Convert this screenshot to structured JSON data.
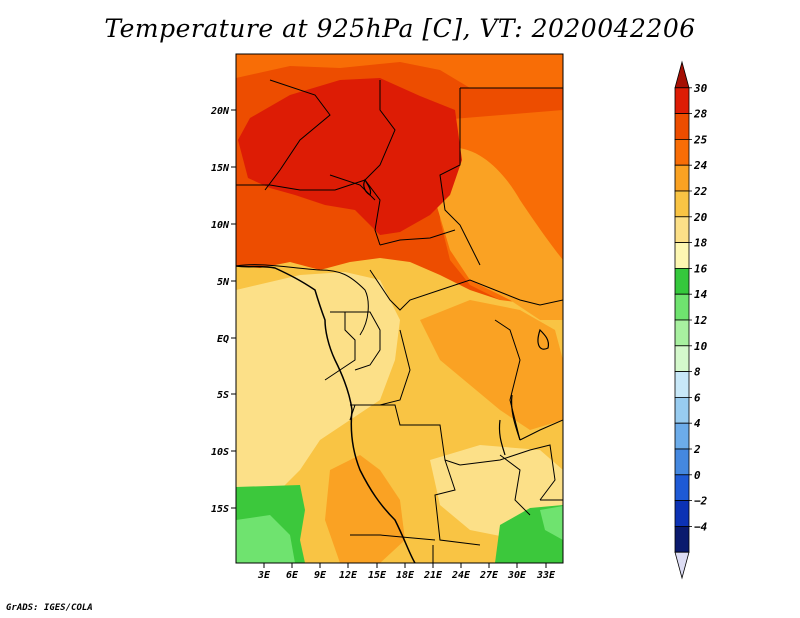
{
  "title": "Temperature at 925hPa [C], VT: 2020042206",
  "credit": "GrADS: IGES/COLA",
  "map": {
    "variable": "Temperature at 925hPa",
    "units": "C",
    "valid_time": "2020042206",
    "lat_labels": [
      "20N",
      "15N",
      "10N",
      "5N",
      "EQ",
      "5S",
      "10S",
      "15S"
    ],
    "lon_labels": [
      "3E",
      "6E",
      "9E",
      "12E",
      "15E",
      "18E",
      "21E",
      "24E",
      "27E",
      "30E",
      "33E"
    ],
    "regions": [
      {
        "name": "sahel-hot-core",
        "color": "#dd1c05"
      },
      {
        "name": "northern-warm-band",
        "color": "#ed4d00"
      },
      {
        "name": "east-sudan-warm",
        "color": "#f86d06"
      },
      {
        "name": "central-basin",
        "color": "#f9c444"
      },
      {
        "name": "atlantic-cool",
        "color": "#fce088"
      },
      {
        "name": "southern-green",
        "color": "#3cc83c"
      }
    ]
  },
  "colorbar": {
    "levels": [
      "30",
      "28",
      "25",
      "24",
      "22",
      "20",
      "18",
      "16",
      "14",
      "12",
      "10",
      "8",
      "6",
      "4",
      "2",
      "0",
      "−2",
      "−4"
    ],
    "colors": [
      "#a50f04",
      "#dd1c05",
      "#ed4d00",
      "#f86d06",
      "#faa223",
      "#f9c444",
      "#fce088",
      "#fdf7b2",
      "#35c83c",
      "#6fe36f",
      "#a8f0a0",
      "#d4f8cc",
      "#c8e8f8",
      "#98ccf0",
      "#6cacea",
      "#4488e0",
      "#1e5ad6",
      "#0c32b4",
      "#0a1a6e",
      "#ddddf4"
    ]
  }
}
